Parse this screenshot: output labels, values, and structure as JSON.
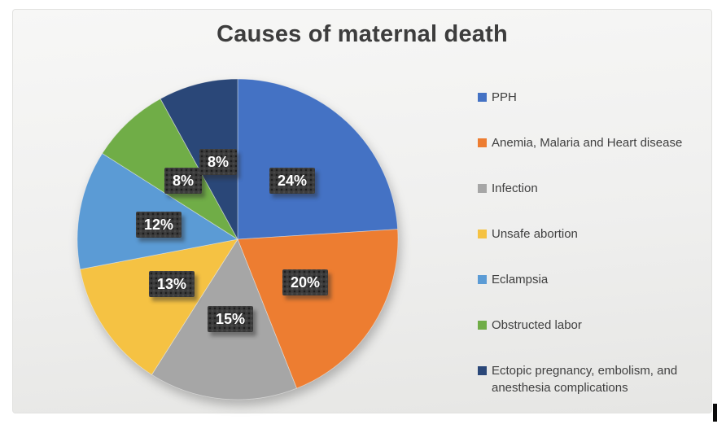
{
  "title": "Causes of maternal death",
  "chart_data": {
    "type": "pie",
    "title": "Causes of maternal death",
    "categories": [
      "PPH",
      "Anemia, Malaria and Heart disease",
      "Infection",
      "Unsafe abortion",
      "Eclampsia",
      "Obstructed labor",
      "Ectopic pregnancy, embolism, and anesthesia complications"
    ],
    "values": [
      24,
      20,
      15,
      13,
      12,
      8,
      8
    ],
    "data_labels": [
      "24%",
      "20%",
      "15%",
      "13%",
      "12%",
      "8%",
      "8%"
    ],
    "colors": [
      "#4472c4",
      "#ed7d31",
      "#a6a6a6",
      "#f5c243",
      "#5b9bd5",
      "#70ad47",
      "#2a4778"
    ],
    "start_angle_deg": 0,
    "direction": "clockwise",
    "legend_position": "right",
    "label_style": "white bold percent text in dark textured boxes inside slices"
  }
}
